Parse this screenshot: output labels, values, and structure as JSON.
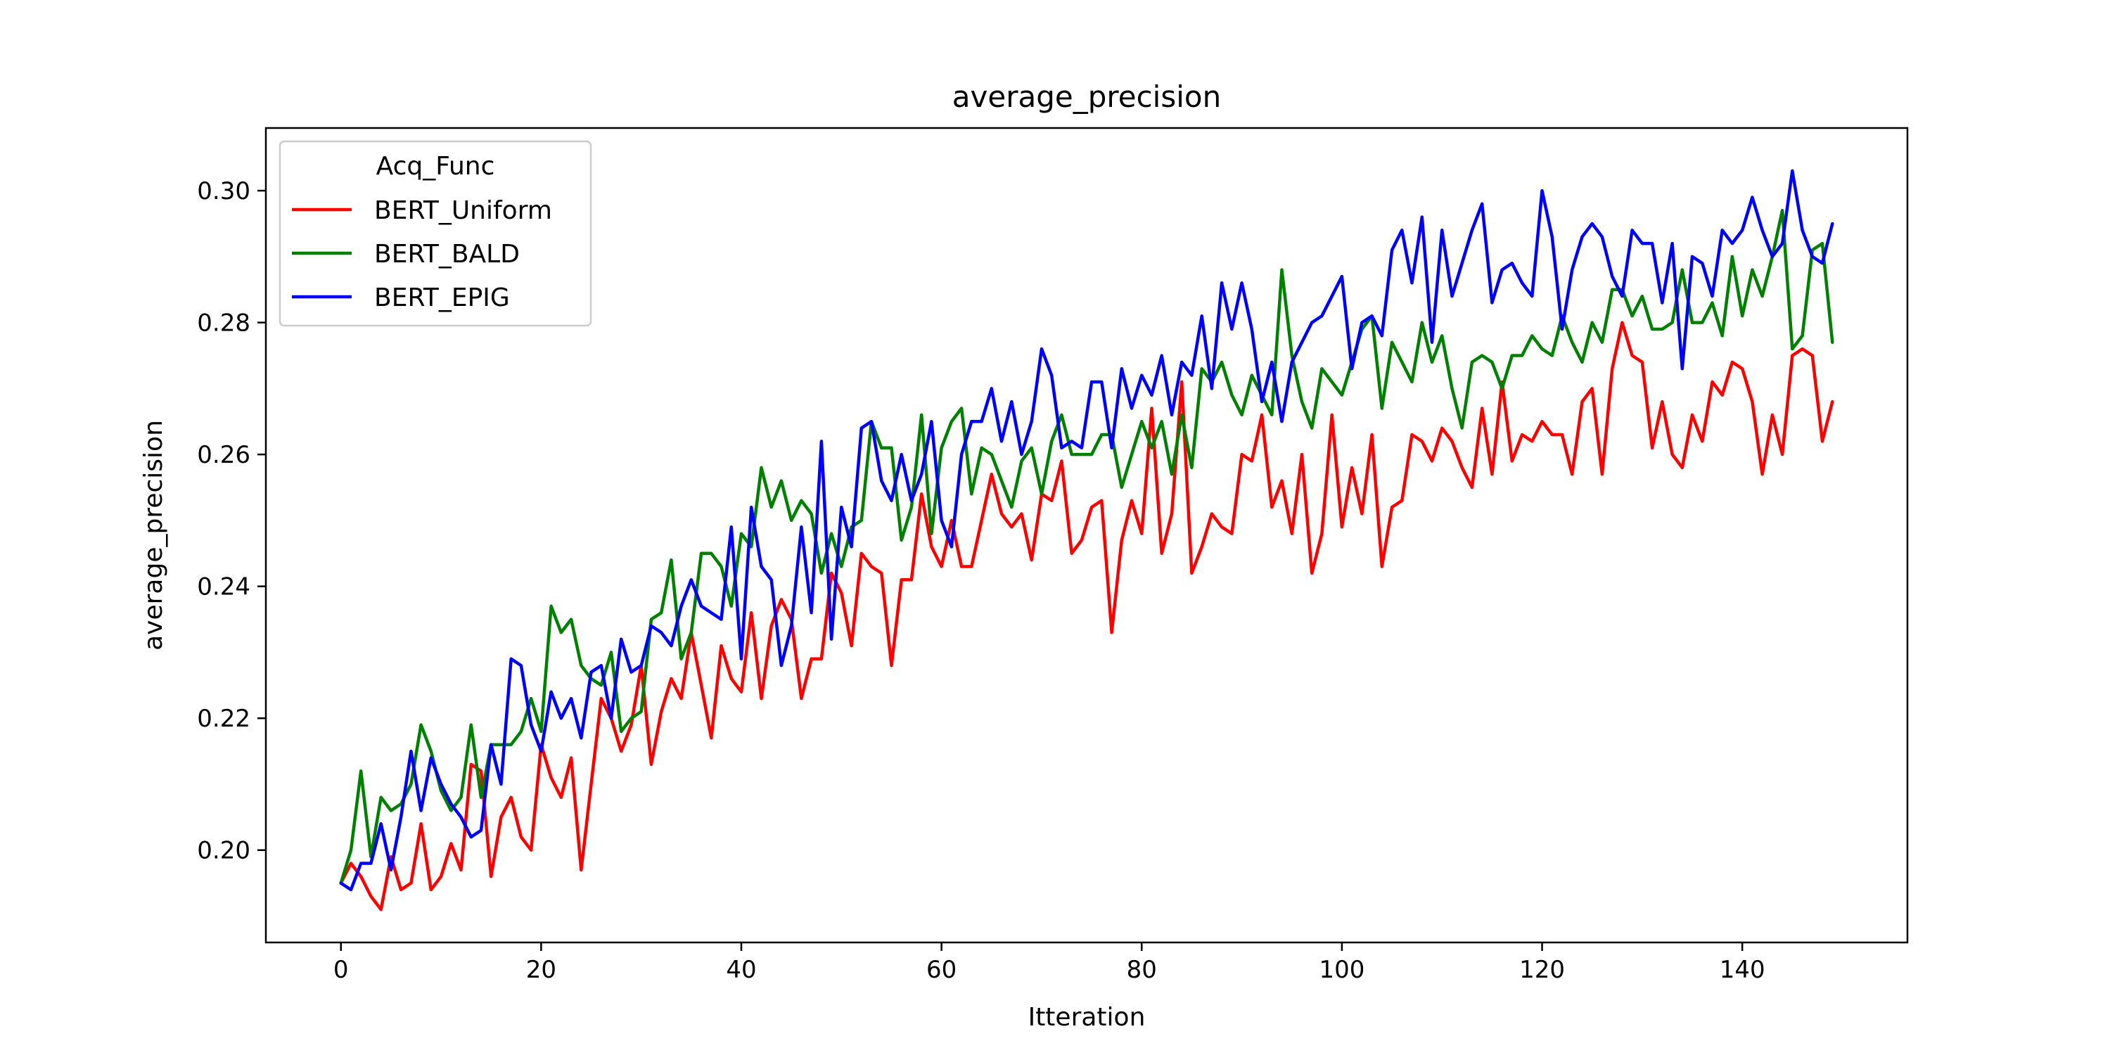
{
  "chart_data": {
    "type": "line",
    "title": "average_precision",
    "xlabel": "Itteration",
    "ylabel": "average_precision",
    "xlim": [
      -7.5,
      156.5
    ],
    "ylim": [
      0.186,
      0.3095
    ],
    "xticks": [
      0,
      20,
      40,
      60,
      80,
      100,
      120,
      140
    ],
    "yticks": [
      0.2,
      0.22,
      0.24,
      0.26,
      0.28,
      0.3
    ],
    "grid": false,
    "legend": {
      "title": "Acq_Func",
      "placement": "top-left"
    },
    "series": [
      {
        "name": "BERT_Uniform",
        "color": "#ff0000",
        "x": [
          0,
          1,
          2,
          3,
          4,
          5,
          6,
          7,
          8,
          9,
          10,
          11,
          12,
          13,
          14,
          15,
          16,
          17,
          18,
          19,
          20,
          21,
          22,
          23,
          24,
          25,
          26,
          27,
          28,
          29,
          30,
          31,
          32,
          33,
          34,
          35,
          36,
          37,
          38,
          39,
          40,
          41,
          42,
          43,
          44,
          45,
          46,
          47,
          48,
          49,
          50,
          51,
          52,
          53,
          54,
          55,
          56,
          57,
          58,
          59,
          60,
          61,
          62,
          63,
          64,
          65,
          66,
          67,
          68,
          69,
          70,
          71,
          72,
          73,
          74,
          75,
          76,
          77,
          78,
          79,
          80,
          81,
          82,
          83,
          84,
          85,
          86,
          87,
          88,
          89,
          90,
          91,
          92,
          93,
          94,
          95,
          96,
          97,
          98,
          99,
          100,
          101,
          102,
          103,
          104,
          105,
          106,
          107,
          108,
          109,
          110,
          111,
          112,
          113,
          114,
          115,
          116,
          117,
          118,
          119,
          120,
          121,
          122,
          123,
          124,
          125,
          126,
          127,
          128,
          129,
          130,
          131,
          132,
          133,
          134,
          135,
          136,
          137,
          138,
          139,
          140,
          141,
          142,
          143,
          144,
          145,
          146,
          147,
          148,
          149
        ],
        "values": [
          0.195,
          0.198,
          0.196,
          0.193,
          0.191,
          0.199,
          0.194,
          0.195,
          0.204,
          0.194,
          0.196,
          0.201,
          0.197,
          0.213,
          0.212,
          0.196,
          0.205,
          0.208,
          0.202,
          0.2,
          0.216,
          0.211,
          0.208,
          0.214,
          0.197,
          0.21,
          0.223,
          0.22,
          0.215,
          0.219,
          0.228,
          0.213,
          0.221,
          0.226,
          0.223,
          0.233,
          0.225,
          0.217,
          0.231,
          0.226,
          0.224,
          0.236,
          0.223,
          0.234,
          0.238,
          0.235,
          0.223,
          0.229,
          0.229,
          0.242,
          0.239,
          0.231,
          0.245,
          0.243,
          0.242,
          0.228,
          0.241,
          0.241,
          0.254,
          0.246,
          0.243,
          0.25,
          0.243,
          0.243,
          0.25,
          0.257,
          0.251,
          0.249,
          0.251,
          0.244,
          0.254,
          0.253,
          0.259,
          0.245,
          0.247,
          0.252,
          0.253,
          0.233,
          0.247,
          0.253,
          0.248,
          0.267,
          0.245,
          0.251,
          0.271,
          0.242,
          0.246,
          0.251,
          0.249,
          0.248,
          0.26,
          0.259,
          0.266,
          0.252,
          0.256,
          0.248,
          0.26,
          0.242,
          0.248,
          0.266,
          0.249,
          0.258,
          0.251,
          0.263,
          0.243,
          0.252,
          0.253,
          0.263,
          0.262,
          0.259,
          0.264,
          0.262,
          0.258,
          0.255,
          0.267,
          0.257,
          0.271,
          0.259,
          0.263,
          0.262,
          0.265,
          0.263,
          0.263,
          0.257,
          0.268,
          0.27,
          0.257,
          0.273,
          0.28,
          0.275,
          0.274,
          0.261,
          0.268,
          0.26,
          0.258,
          0.266,
          0.262,
          0.271,
          0.269,
          0.274,
          0.273,
          0.268,
          0.257,
          0.266,
          0.26,
          0.275,
          0.276,
          0.275,
          0.262,
          0.268
        ]
      },
      {
        "name": "BERT_BALD",
        "color": "#008000",
        "x": [
          0,
          1,
          2,
          3,
          4,
          5,
          6,
          7,
          8,
          9,
          10,
          11,
          12,
          13,
          14,
          15,
          16,
          17,
          18,
          19,
          20,
          21,
          22,
          23,
          24,
          25,
          26,
          27,
          28,
          29,
          30,
          31,
          32,
          33,
          34,
          35,
          36,
          37,
          38,
          39,
          40,
          41,
          42,
          43,
          44,
          45,
          46,
          47,
          48,
          49,
          50,
          51,
          52,
          53,
          54,
          55,
          56,
          57,
          58,
          59,
          60,
          61,
          62,
          63,
          64,
          65,
          66,
          67,
          68,
          69,
          70,
          71,
          72,
          73,
          74,
          75,
          76,
          77,
          78,
          79,
          80,
          81,
          82,
          83,
          84,
          85,
          86,
          87,
          88,
          89,
          90,
          91,
          92,
          93,
          94,
          95,
          96,
          97,
          98,
          99,
          100,
          101,
          102,
          103,
          104,
          105,
          106,
          107,
          108,
          109,
          110,
          111,
          112,
          113,
          114,
          115,
          116,
          117,
          118,
          119,
          120,
          121,
          122,
          123,
          124,
          125,
          126,
          127,
          128,
          129,
          130,
          131,
          132,
          133,
          134,
          135,
          136,
          137,
          138,
          139,
          140,
          141,
          142,
          143,
          144,
          145,
          146,
          147,
          148,
          149
        ],
        "values": [
          0.195,
          0.2,
          0.212,
          0.199,
          0.208,
          0.206,
          0.207,
          0.21,
          0.219,
          0.215,
          0.209,
          0.206,
          0.208,
          0.219,
          0.208,
          0.216,
          0.216,
          0.216,
          0.218,
          0.223,
          0.218,
          0.237,
          0.233,
          0.235,
          0.228,
          0.226,
          0.225,
          0.23,
          0.218,
          0.22,
          0.221,
          0.235,
          0.236,
          0.244,
          0.229,
          0.233,
          0.245,
          0.245,
          0.243,
          0.237,
          0.248,
          0.246,
          0.258,
          0.252,
          0.256,
          0.25,
          0.253,
          0.251,
          0.242,
          0.248,
          0.243,
          0.249,
          0.25,
          0.265,
          0.261,
          0.261,
          0.247,
          0.252,
          0.266,
          0.248,
          0.261,
          0.265,
          0.267,
          0.254,
          0.261,
          0.26,
          0.256,
          0.252,
          0.259,
          0.261,
          0.254,
          0.262,
          0.266,
          0.26,
          0.26,
          0.26,
          0.263,
          0.263,
          0.255,
          0.26,
          0.265,
          0.261,
          0.265,
          0.257,
          0.266,
          0.258,
          0.273,
          0.271,
          0.274,
          0.269,
          0.266,
          0.272,
          0.269,
          0.266,
          0.288,
          0.275,
          0.268,
          0.264,
          0.273,
          0.271,
          0.269,
          0.274,
          0.279,
          0.281,
          0.267,
          0.277,
          0.274,
          0.271,
          0.28,
          0.274,
          0.278,
          0.27,
          0.264,
          0.274,
          0.275,
          0.274,
          0.27,
          0.275,
          0.275,
          0.278,
          0.276,
          0.275,
          0.281,
          0.277,
          0.274,
          0.28,
          0.277,
          0.285,
          0.285,
          0.281,
          0.284,
          0.279,
          0.279,
          0.28,
          0.288,
          0.28,
          0.28,
          0.283,
          0.278,
          0.29,
          0.281,
          0.288,
          0.284,
          0.29,
          0.297,
          0.276,
          0.278,
          0.291,
          0.292,
          0.277
        ]
      },
      {
        "name": "BERT_EPIG",
        "color": "#0000ff",
        "x": [
          0,
          1,
          2,
          3,
          4,
          5,
          6,
          7,
          8,
          9,
          10,
          11,
          12,
          13,
          14,
          15,
          16,
          17,
          18,
          19,
          20,
          21,
          22,
          23,
          24,
          25,
          26,
          27,
          28,
          29,
          30,
          31,
          32,
          33,
          34,
          35,
          36,
          37,
          38,
          39,
          40,
          41,
          42,
          43,
          44,
          45,
          46,
          47,
          48,
          49,
          50,
          51,
          52,
          53,
          54,
          55,
          56,
          57,
          58,
          59,
          60,
          61,
          62,
          63,
          64,
          65,
          66,
          67,
          68,
          69,
          70,
          71,
          72,
          73,
          74,
          75,
          76,
          77,
          78,
          79,
          80,
          81,
          82,
          83,
          84,
          85,
          86,
          87,
          88,
          89,
          90,
          91,
          92,
          93,
          94,
          95,
          96,
          97,
          98,
          99,
          100,
          101,
          102,
          103,
          104,
          105,
          106,
          107,
          108,
          109,
          110,
          111,
          112,
          113,
          114,
          115,
          116,
          117,
          118,
          119,
          120,
          121,
          122,
          123,
          124,
          125,
          126,
          127,
          128,
          129,
          130,
          131,
          132,
          133,
          134,
          135,
          136,
          137,
          138,
          139,
          140,
          141,
          142,
          143,
          144,
          145,
          146,
          147,
          148,
          149
        ],
        "values": [
          0.195,
          0.194,
          0.198,
          0.198,
          0.204,
          0.197,
          0.205,
          0.215,
          0.206,
          0.214,
          0.21,
          0.207,
          0.205,
          0.202,
          0.203,
          0.216,
          0.21,
          0.229,
          0.228,
          0.219,
          0.215,
          0.224,
          0.22,
          0.223,
          0.217,
          0.227,
          0.228,
          0.22,
          0.232,
          0.227,
          0.228,
          0.234,
          0.233,
          0.231,
          0.237,
          0.241,
          0.237,
          0.236,
          0.235,
          0.249,
          0.229,
          0.252,
          0.243,
          0.241,
          0.228,
          0.234,
          0.249,
          0.236,
          0.262,
          0.232,
          0.252,
          0.246,
          0.264,
          0.265,
          0.256,
          0.253,
          0.26,
          0.253,
          0.257,
          0.265,
          0.25,
          0.246,
          0.26,
          0.265,
          0.265,
          0.27,
          0.262,
          0.268,
          0.26,
          0.265,
          0.276,
          0.272,
          0.261,
          0.262,
          0.261,
          0.271,
          0.271,
          0.261,
          0.273,
          0.267,
          0.272,
          0.269,
          0.275,
          0.266,
          0.274,
          0.272,
          0.281,
          0.27,
          0.286,
          0.279,
          0.286,
          0.279,
          0.268,
          0.274,
          0.265,
          0.274,
          0.277,
          0.28,
          0.281,
          0.284,
          0.287,
          0.273,
          0.28,
          0.281,
          0.278,
          0.291,
          0.294,
          0.286,
          0.296,
          0.277,
          0.294,
          0.284,
          0.289,
          0.294,
          0.298,
          0.283,
          0.288,
          0.289,
          0.286,
          0.284,
          0.3,
          0.293,
          0.279,
          0.288,
          0.293,
          0.295,
          0.293,
          0.287,
          0.284,
          0.294,
          0.292,
          0.292,
          0.283,
          0.292,
          0.273,
          0.29,
          0.289,
          0.284,
          0.294,
          0.292,
          0.294,
          0.299,
          0.294,
          0.29,
          0.292,
          0.303,
          0.294,
          0.29,
          0.289,
          0.295
        ]
      }
    ]
  }
}
